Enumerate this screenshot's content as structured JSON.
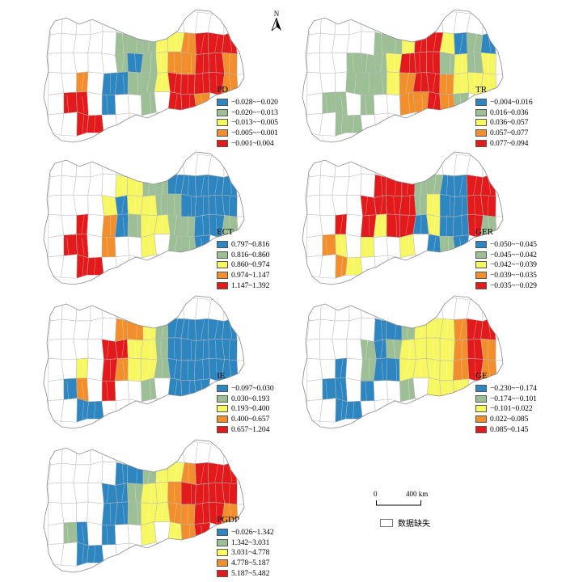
{
  "north_label": "N",
  "no_data": {
    "label": "数据缺失",
    "color": "#ffffff"
  },
  "scale": {
    "zero": "0",
    "distance": "400 km"
  },
  "palette": [
    "#2e86c1",
    "#9cbf95",
    "#f7f761",
    "#f28e2b",
    "#e31a1c"
  ],
  "maps": [
    {
      "id": "PD",
      "title": "PD",
      "classes": [
        "−0.028~−0.020",
        "−0.020~−0.013",
        "−0.013~−0.005",
        "−0.005~−0.001",
        "−0.001~0.004"
      ],
      "pattern": [
        "nd",
        "nd",
        "nd",
        "nd",
        "nd",
        "nd",
        "nd",
        "nd",
        "nd",
        "nd",
        "nd",
        "nd",
        "nd",
        "nd",
        "nd",
        "nd",
        "nd",
        "nd",
        "nd",
        "nd",
        "1",
        "1",
        "1",
        "2",
        "2",
        "3",
        "4",
        "4",
        "4",
        "nd",
        "nd",
        "nd",
        "nd",
        "nd",
        "nd",
        "1",
        "0",
        "1",
        "2",
        "3",
        "3",
        "4",
        "4",
        "3",
        "nd",
        "nd",
        "nd",
        "3",
        "nd",
        "0",
        "0",
        "1",
        "1",
        "2",
        "4",
        "4",
        "4",
        "4",
        "3",
        "nd",
        "nd",
        "4",
        "4",
        "nd",
        "0",
        "nd",
        "nd",
        "1",
        "nd",
        "4",
        "4",
        "3",
        "nd",
        "nd",
        "nd",
        "nd",
        "nd",
        "4",
        "4",
        "nd",
        "nd",
        "nd",
        "nd",
        "nd",
        "nd",
        "nd",
        "nd",
        "nd",
        "nd",
        "nd"
      ]
    },
    {
      "id": "TR",
      "title": "TR",
      "classes": [
        "−0.004~0.016",
        "0.016~0.036",
        "0.036~0.057",
        "0.057~0.077",
        "0.077~0.094"
      ],
      "pattern": [
        "nd",
        "nd",
        "nd",
        "nd",
        "nd",
        "nd",
        "nd",
        "nd",
        "nd",
        "nd",
        "nd",
        "nd",
        "nd",
        "nd",
        "nd",
        "nd",
        "nd",
        "nd",
        "nd",
        "nd",
        "1",
        "1",
        "2",
        "4",
        "4",
        "2",
        "0",
        "1",
        "0",
        "nd",
        "nd",
        "nd",
        "nd",
        "1",
        "1",
        "1",
        "2",
        "4",
        "4",
        "4",
        "1",
        "2",
        "1",
        "2",
        "nd",
        "nd",
        "nd",
        "nd",
        "1",
        "1",
        "1",
        "2",
        "3",
        "4",
        "4",
        "3",
        "2",
        "2",
        "2",
        "nd",
        "nd",
        "1",
        "1",
        "nd",
        "1",
        "nd",
        "nd",
        "3",
        "3",
        "4",
        "3",
        "1",
        "nd",
        "nd",
        "nd",
        "nd",
        "nd",
        "1",
        "1",
        "nd",
        "nd",
        "nd",
        "nd",
        "nd",
        "nd",
        "nd",
        "nd",
        "nd",
        "nd",
        "nd"
      ]
    },
    {
      "id": "ECT",
      "title": "ECT",
      "classes": [
        "0.797~0.816",
        "0.816~0.860",
        "0.860~0.974",
        "0.974~1.147",
        "1.147~1.392"
      ],
      "pattern": [
        "nd",
        "nd",
        "nd",
        "nd",
        "nd",
        "nd",
        "nd",
        "nd",
        "nd",
        "nd",
        "nd",
        "nd",
        "nd",
        "nd",
        "nd",
        "nd",
        "nd",
        "nd",
        "nd",
        "nd",
        "2",
        "2",
        "1",
        "1",
        "0",
        "0",
        "0",
        "0",
        "0",
        "nd",
        "nd",
        "nd",
        "nd",
        "nd",
        "2",
        "0",
        "2",
        "2",
        "1",
        "1",
        "0",
        "0",
        "0",
        "0",
        "nd",
        "nd",
        "nd",
        "4",
        "nd",
        "3",
        "0",
        "1",
        "2",
        "2",
        "1",
        "1",
        "0",
        "0",
        "1",
        "nd",
        "nd",
        "4",
        "4",
        "nd",
        "3",
        "nd",
        "nd",
        "2",
        "nd",
        "1",
        "1",
        "0",
        "nd",
        "nd",
        "nd",
        "nd",
        "nd",
        "4",
        "4",
        "nd",
        "nd",
        "nd",
        "nd",
        "nd",
        "nd",
        "nd",
        "nd",
        "nd",
        "nd",
        "nd"
      ]
    },
    {
      "id": "GER",
      "title": "GER",
      "classes": [
        "−0.050~−0.045",
        "−0.045~−0.042",
        "−0.042~−0.039",
        "−0.039~−0.035",
        "−0.035~−0.029"
      ],
      "pattern": [
        "nd",
        "nd",
        "nd",
        "nd",
        "nd",
        "nd",
        "nd",
        "nd",
        "nd",
        "nd",
        "nd",
        "nd",
        "nd",
        "nd",
        "nd",
        "nd",
        "nd",
        "nd",
        "nd",
        "nd",
        "4",
        "4",
        "4",
        "1",
        "1",
        "0",
        "0",
        "4",
        "4",
        "nd",
        "nd",
        "nd",
        "nd",
        "nd",
        "4",
        "4",
        "4",
        "4",
        "1",
        "2",
        "0",
        "0",
        "4",
        "4",
        "nd",
        "nd",
        "nd",
        "4",
        "nd",
        "4",
        "2",
        "4",
        "4",
        "0",
        "2",
        "0",
        "0",
        "4",
        "1",
        "nd",
        "nd",
        "3",
        "2",
        "nd",
        "2",
        "nd",
        "nd",
        "2",
        "nd",
        "0",
        "1",
        "0",
        "nd",
        "nd",
        "nd",
        "nd",
        "nd",
        "3",
        "2",
        "nd",
        "nd",
        "nd",
        "nd",
        "nd",
        "nd",
        "nd",
        "nd",
        "nd",
        "nd",
        "nd"
      ]
    },
    {
      "id": "IE",
      "title": "IE",
      "classes": [
        "−0.097~0.030",
        "0.030~0.193",
        "0.193~0.400",
        "0.400~0.657",
        "0.657~1.204"
      ],
      "pattern": [
        "nd",
        "nd",
        "nd",
        "nd",
        "nd",
        "nd",
        "nd",
        "nd",
        "nd",
        "nd",
        "nd",
        "nd",
        "nd",
        "nd",
        "nd",
        "nd",
        "nd",
        "nd",
        "nd",
        "nd",
        "3",
        "3",
        "2",
        "1",
        "0",
        "0",
        "0",
        "0",
        "0",
        "nd",
        "nd",
        "nd",
        "nd",
        "nd",
        "4",
        "4",
        "2",
        "2",
        "1",
        "0",
        "0",
        "0",
        "0",
        "0",
        "nd",
        "nd",
        "nd",
        "2",
        "nd",
        "4",
        "3",
        "2",
        "2",
        "1",
        "0",
        "0",
        "0",
        "0",
        "0",
        "nd",
        "nd",
        "0",
        "3",
        "nd",
        "4",
        "nd",
        "nd",
        "1",
        "nd",
        "0",
        "0",
        "0",
        "nd",
        "nd",
        "nd",
        "nd",
        "nd",
        "0",
        "0",
        "nd",
        "nd",
        "nd",
        "nd",
        "nd",
        "nd",
        "nd",
        "nd",
        "nd",
        "nd",
        "nd"
      ]
    },
    {
      "id": "GE",
      "title": "GE",
      "classes": [
        "−0.230~−0.174",
        "−0.174~−0.101",
        "−0.101~0.022",
        "0.022~0.085",
        "0.085~0.145"
      ],
      "pattern": [
        "nd",
        "nd",
        "nd",
        "nd",
        "nd",
        "nd",
        "nd",
        "nd",
        "nd",
        "nd",
        "nd",
        "nd",
        "nd",
        "nd",
        "nd",
        "nd",
        "nd",
        "nd",
        "nd",
        "nd",
        "0",
        "0",
        "1",
        "2",
        "2",
        "2",
        "3",
        "4",
        "4",
        "nd",
        "nd",
        "nd",
        "nd",
        "nd",
        "1",
        "0",
        "1",
        "2",
        "2",
        "2",
        "2",
        "3",
        "4",
        "3",
        "nd",
        "nd",
        "nd",
        "0",
        "nd",
        "1",
        "0",
        "0",
        "2",
        "2",
        "2",
        "2",
        "3",
        "4",
        "3",
        "nd",
        "nd",
        "0",
        "0",
        "nd",
        "0",
        "nd",
        "nd",
        "1",
        "nd",
        "2",
        "2",
        "2",
        "nd",
        "nd",
        "nd",
        "nd",
        "nd",
        "0",
        "0",
        "nd",
        "nd",
        "nd",
        "nd",
        "nd",
        "nd",
        "nd",
        "nd",
        "nd",
        "nd",
        "nd"
      ]
    },
    {
      "id": "PGDP",
      "title": "PGDP",
      "classes": [
        "−0.026~1.342",
        "1.342~3.031",
        "3.031~4.778",
        "4.778~5.187",
        "5.187~5.482"
      ],
      "pattern": [
        "nd",
        "nd",
        "nd",
        "nd",
        "nd",
        "nd",
        "nd",
        "nd",
        "nd",
        "nd",
        "nd",
        "nd",
        "nd",
        "nd",
        "nd",
        "nd",
        "nd",
        "nd",
        "nd",
        "nd",
        "0",
        "0",
        "1",
        "2",
        "2",
        "3",
        "4",
        "4",
        "4",
        "nd",
        "nd",
        "nd",
        "nd",
        "nd",
        "0",
        "0",
        "1",
        "2",
        "2",
        "3",
        "4",
        "4",
        "4",
        "4",
        "nd",
        "nd",
        "nd",
        "nd",
        "nd",
        "0",
        "0",
        "1",
        "2",
        "2",
        "3",
        "3",
        "4",
        "4",
        "3",
        "nd",
        "nd",
        "1",
        "0",
        "nd",
        "0",
        "nd",
        "nd",
        "2",
        "nd",
        "2",
        "3",
        "4",
        "nd",
        "nd",
        "nd",
        "nd",
        "nd",
        "0",
        "0",
        "nd",
        "nd",
        "nd",
        "nd",
        "nd",
        "nd",
        "nd",
        "nd",
        "nd",
        "nd",
        "nd"
      ]
    }
  ]
}
